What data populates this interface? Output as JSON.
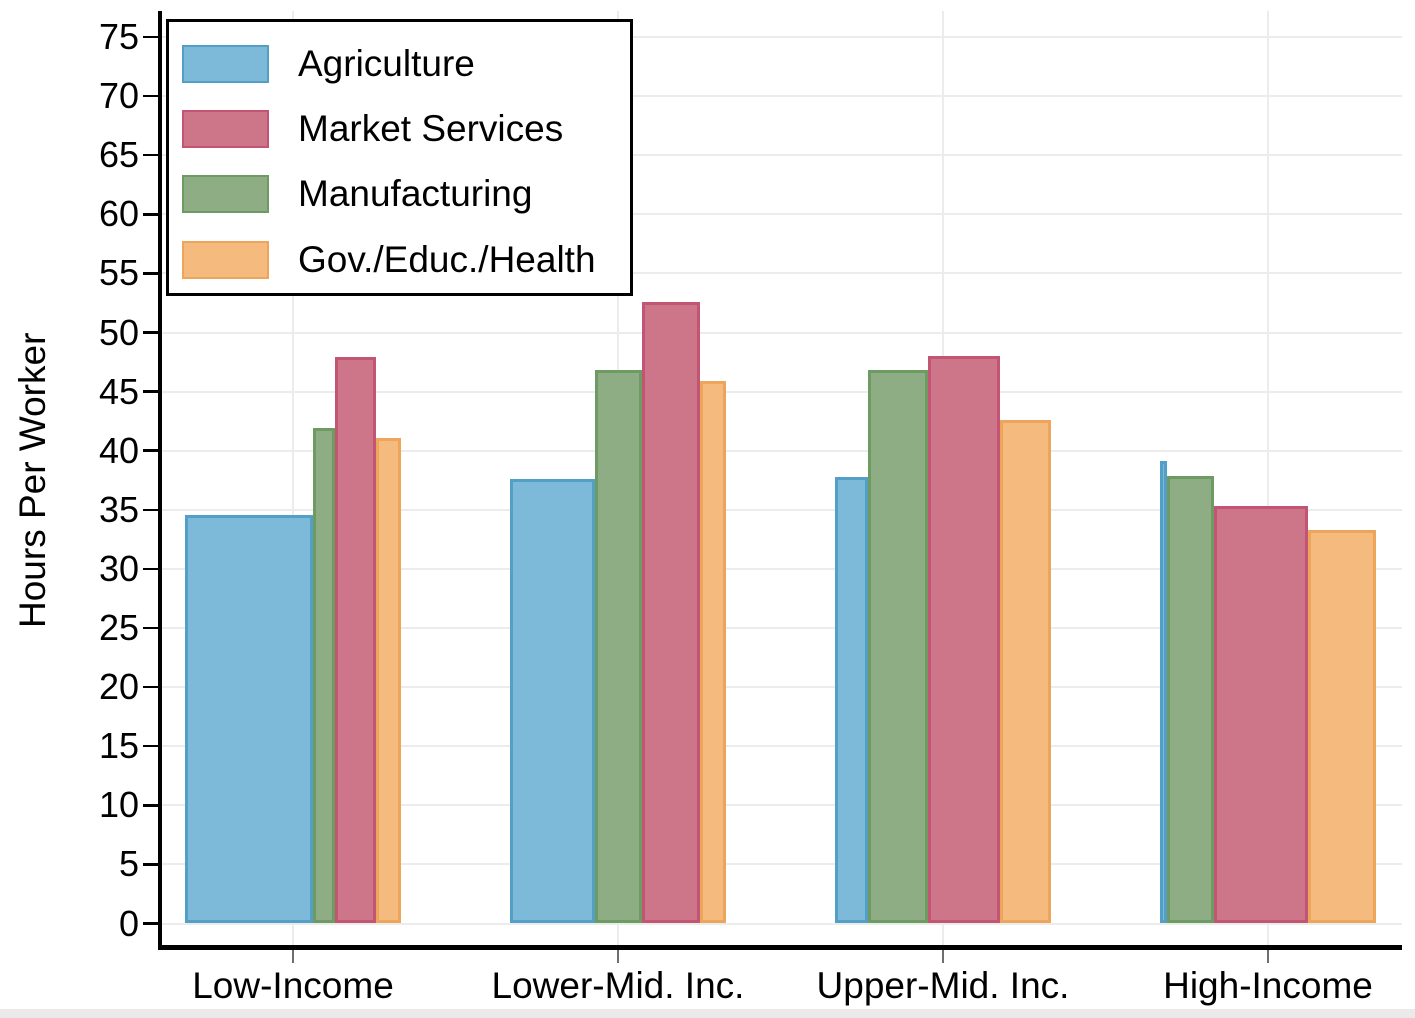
{
  "chart_data": {
    "type": "bar",
    "title": "",
    "xlabel": "",
    "ylabel": "Hours Per Worker",
    "ylim": [
      0,
      75
    ],
    "yticks": [
      0,
      5,
      10,
      15,
      20,
      25,
      30,
      35,
      40,
      45,
      50,
      55,
      60,
      65,
      70,
      75
    ],
    "grid": "horizontal gridlines at every y tick; faint vertical gridline at each category center",
    "legend_position": "top-left inside plot area, boxed",
    "categories": [
      "Low-Income",
      "Lower-Mid. Inc.",
      "Upper-Mid. Inc.",
      "High-Income"
    ],
    "legend_order": [
      "Agriculture",
      "Market Services",
      "Manufacturing",
      "Gov./Educ./Health"
    ],
    "bar_draw_order": [
      "Agriculture",
      "Manufacturing",
      "Market Services",
      "Gov./Educ./Health"
    ],
    "bar_width_note": "bar widths within each category are proportional to width_shares (sector employment shares)",
    "series": [
      {
        "name": "Agriculture",
        "color": "#7db9d9",
        "border": "#539fc6",
        "values": [
          34.6,
          37.6,
          37.8,
          39.1
        ],
        "width_shares": [
          0.59,
          0.392,
          0.154,
          0.035
        ]
      },
      {
        "name": "Market Services",
        "color": "#cd7689",
        "border": "#c25573",
        "values": [
          47.9,
          52.6,
          48.0,
          35.3
        ],
        "width_shares": [
          0.19,
          0.264,
          0.332,
          0.434
        ]
      },
      {
        "name": "Manufacturing",
        "color": "#8ead85",
        "border": "#6d9b62",
        "values": [
          41.9,
          46.8,
          46.8,
          37.9
        ],
        "width_shares": [
          0.104,
          0.22,
          0.276,
          0.214
        ]
      },
      {
        "name": "Gov./Educ./Health",
        "color": "#f5ba7d",
        "border": "#eda45b",
        "values": [
          41.1,
          45.9,
          42.6,
          33.3
        ],
        "width_shares": [
          0.116,
          0.124,
          0.238,
          0.317
        ]
      }
    ]
  }
}
